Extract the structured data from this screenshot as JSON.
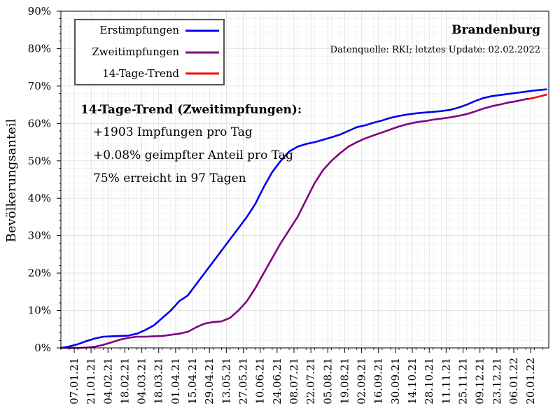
{
  "chart_data": {
    "type": "line",
    "title": "Brandenburg",
    "subtitle": "Datenquelle: RKI; letztes Update: 02.02.2022",
    "ylabel": "Bevölkerungsanteil",
    "xlabel": "",
    "ylim": [
      0,
      90
    ],
    "y_ticks": [
      "0%",
      "10%",
      "20%",
      "30%",
      "40%",
      "50%",
      "60%",
      "70%",
      "80%",
      "90%"
    ],
    "x_tick_labels": [
      "07.01.21",
      "21.01.21",
      "04.02.21",
      "18.02.21",
      "04.03.21",
      "18.03.21",
      "01.04.21",
      "15.04.21",
      "29.04.21",
      "13.05.21",
      "27.05.21",
      "10.06.21",
      "24.06.21",
      "08.07.21",
      "22.07.21",
      "05.08.21",
      "19.08.21",
      "02.09.21",
      "16.09.21",
      "30.09.21",
      "14.10.21",
      "28.10.21",
      "11.11.21",
      "25.11.21",
      "09.12.21",
      "23.12.21",
      "06.01.22",
      "20.01.22"
    ],
    "grid": true,
    "legend_position": "top-left",
    "series": [
      {
        "name": "Erstimpfungen",
        "color": "#0000ee",
        "points": [
          [
            "27.12.20",
            0
          ],
          [
            "03.01.21",
            0.4
          ],
          [
            "10.01.21",
            1.0
          ],
          [
            "17.01.21",
            1.8
          ],
          [
            "24.01.21",
            2.5
          ],
          [
            "31.01.21",
            3.0
          ],
          [
            "07.02.21",
            3.1
          ],
          [
            "14.02.21",
            3.2
          ],
          [
            "21.02.21",
            3.3
          ],
          [
            "28.02.21",
            3.8
          ],
          [
            "07.03.21",
            4.8
          ],
          [
            "14.03.21",
            6.0
          ],
          [
            "21.03.21",
            8.0
          ],
          [
            "28.03.21",
            10.0
          ],
          [
            "04.04.21",
            12.5
          ],
          [
            "11.04.21",
            14.0
          ],
          [
            "18.04.21",
            17.0
          ],
          [
            "25.04.21",
            20.0
          ],
          [
            "02.05.21",
            23.0
          ],
          [
            "09.05.21",
            26.0
          ],
          [
            "16.05.21",
            29.0
          ],
          [
            "23.05.21",
            32.0
          ],
          [
            "30.05.21",
            35.0
          ],
          [
            "06.06.21",
            38.5
          ],
          [
            "13.06.21",
            43.0
          ],
          [
            "20.06.21",
            47.0
          ],
          [
            "27.06.21",
            50.0
          ],
          [
            "04.07.21",
            52.5
          ],
          [
            "11.07.21",
            53.8
          ],
          [
            "18.07.21",
            54.5
          ],
          [
            "25.07.21",
            55.0
          ],
          [
            "01.08.21",
            55.6
          ],
          [
            "08.08.21",
            56.3
          ],
          [
            "15.08.21",
            57.0
          ],
          [
            "22.08.21",
            58.0
          ],
          [
            "29.08.21",
            59.0
          ],
          [
            "05.09.21",
            59.5
          ],
          [
            "12.09.21",
            60.2
          ],
          [
            "19.09.21",
            60.8
          ],
          [
            "26.09.21",
            61.5
          ],
          [
            "03.10.21",
            62.0
          ],
          [
            "10.10.21",
            62.4
          ],
          [
            "17.10.21",
            62.7
          ],
          [
            "24.10.21",
            62.9
          ],
          [
            "31.10.21",
            63.1
          ],
          [
            "07.11.21",
            63.3
          ],
          [
            "14.11.21",
            63.6
          ],
          [
            "21.11.21",
            64.2
          ],
          [
            "28.11.21",
            65.0
          ],
          [
            "05.12.21",
            66.0
          ],
          [
            "12.12.21",
            66.8
          ],
          [
            "19.12.21",
            67.3
          ],
          [
            "26.12.21",
            67.6
          ],
          [
            "02.01.22",
            67.9
          ],
          [
            "09.01.22",
            68.2
          ],
          [
            "16.01.22",
            68.5
          ],
          [
            "23.01.22",
            68.8
          ],
          [
            "30.01.22",
            69.0
          ],
          [
            "02.02.22",
            69.1
          ]
        ]
      },
      {
        "name": "Zweitimpfungen",
        "color": "#800080",
        "points": [
          [
            "27.12.20",
            0
          ],
          [
            "10.01.21",
            0
          ],
          [
            "17.01.21",
            0.1
          ],
          [
            "24.01.21",
            0.3
          ],
          [
            "31.01.21",
            0.8
          ],
          [
            "07.02.21",
            1.5
          ],
          [
            "14.02.21",
            2.2
          ],
          [
            "21.02.21",
            2.7
          ],
          [
            "28.02.21",
            3.0
          ],
          [
            "07.03.21",
            3.0
          ],
          [
            "14.03.21",
            3.1
          ],
          [
            "21.03.21",
            3.2
          ],
          [
            "28.03.21",
            3.5
          ],
          [
            "04.04.21",
            3.8
          ],
          [
            "11.04.21",
            4.3
          ],
          [
            "18.04.21",
            5.5
          ],
          [
            "25.04.21",
            6.5
          ],
          [
            "02.05.21",
            6.9
          ],
          [
            "09.05.21",
            7.1
          ],
          [
            "16.05.21",
            8.0
          ],
          [
            "23.05.21",
            10.0
          ],
          [
            "30.05.21",
            12.5
          ],
          [
            "06.06.21",
            16.0
          ],
          [
            "13.06.21",
            20.0
          ],
          [
            "20.06.21",
            24.0
          ],
          [
            "27.06.21",
            28.0
          ],
          [
            "04.07.21",
            31.5
          ],
          [
            "11.07.21",
            35.0
          ],
          [
            "18.07.21",
            39.5
          ],
          [
            "25.07.21",
            44.0
          ],
          [
            "01.08.21",
            47.5
          ],
          [
            "08.08.21",
            50.0
          ],
          [
            "15.08.21",
            52.0
          ],
          [
            "22.08.21",
            53.8
          ],
          [
            "29.08.21",
            55.0
          ],
          [
            "05.09.21",
            56.0
          ],
          [
            "12.09.21",
            56.8
          ],
          [
            "19.09.21",
            57.6
          ],
          [
            "26.09.21",
            58.4
          ],
          [
            "03.10.21",
            59.2
          ],
          [
            "10.10.21",
            59.8
          ],
          [
            "17.10.21",
            60.3
          ],
          [
            "24.10.21",
            60.6
          ],
          [
            "31.10.21",
            61.0
          ],
          [
            "07.11.21",
            61.3
          ],
          [
            "14.11.21",
            61.6
          ],
          [
            "21.11.21",
            62.0
          ],
          [
            "28.11.21",
            62.5
          ],
          [
            "05.12.21",
            63.2
          ],
          [
            "12.12.21",
            64.0
          ],
          [
            "19.12.21",
            64.6
          ],
          [
            "26.12.21",
            65.1
          ],
          [
            "02.01.22",
            65.6
          ],
          [
            "09.01.22",
            66.0
          ],
          [
            "16.01.22",
            66.5
          ],
          [
            "19.01.22",
            66.6
          ]
        ]
      },
      {
        "name": "14-Tage-Trend",
        "color": "#ff0000",
        "points": [
          [
            "19.01.22",
            66.6
          ],
          [
            "26.01.22",
            67.1
          ],
          [
            "02.02.22",
            67.7
          ]
        ]
      }
    ],
    "annotation": {
      "heading": "14-Tage-Trend (Zweitimpfungen):",
      "lines": [
        "+1903 Impfungen pro Tag",
        "+0.08% geimpfter Anteil pro Tag",
        "75% erreicht in 97 Tagen"
      ]
    }
  }
}
